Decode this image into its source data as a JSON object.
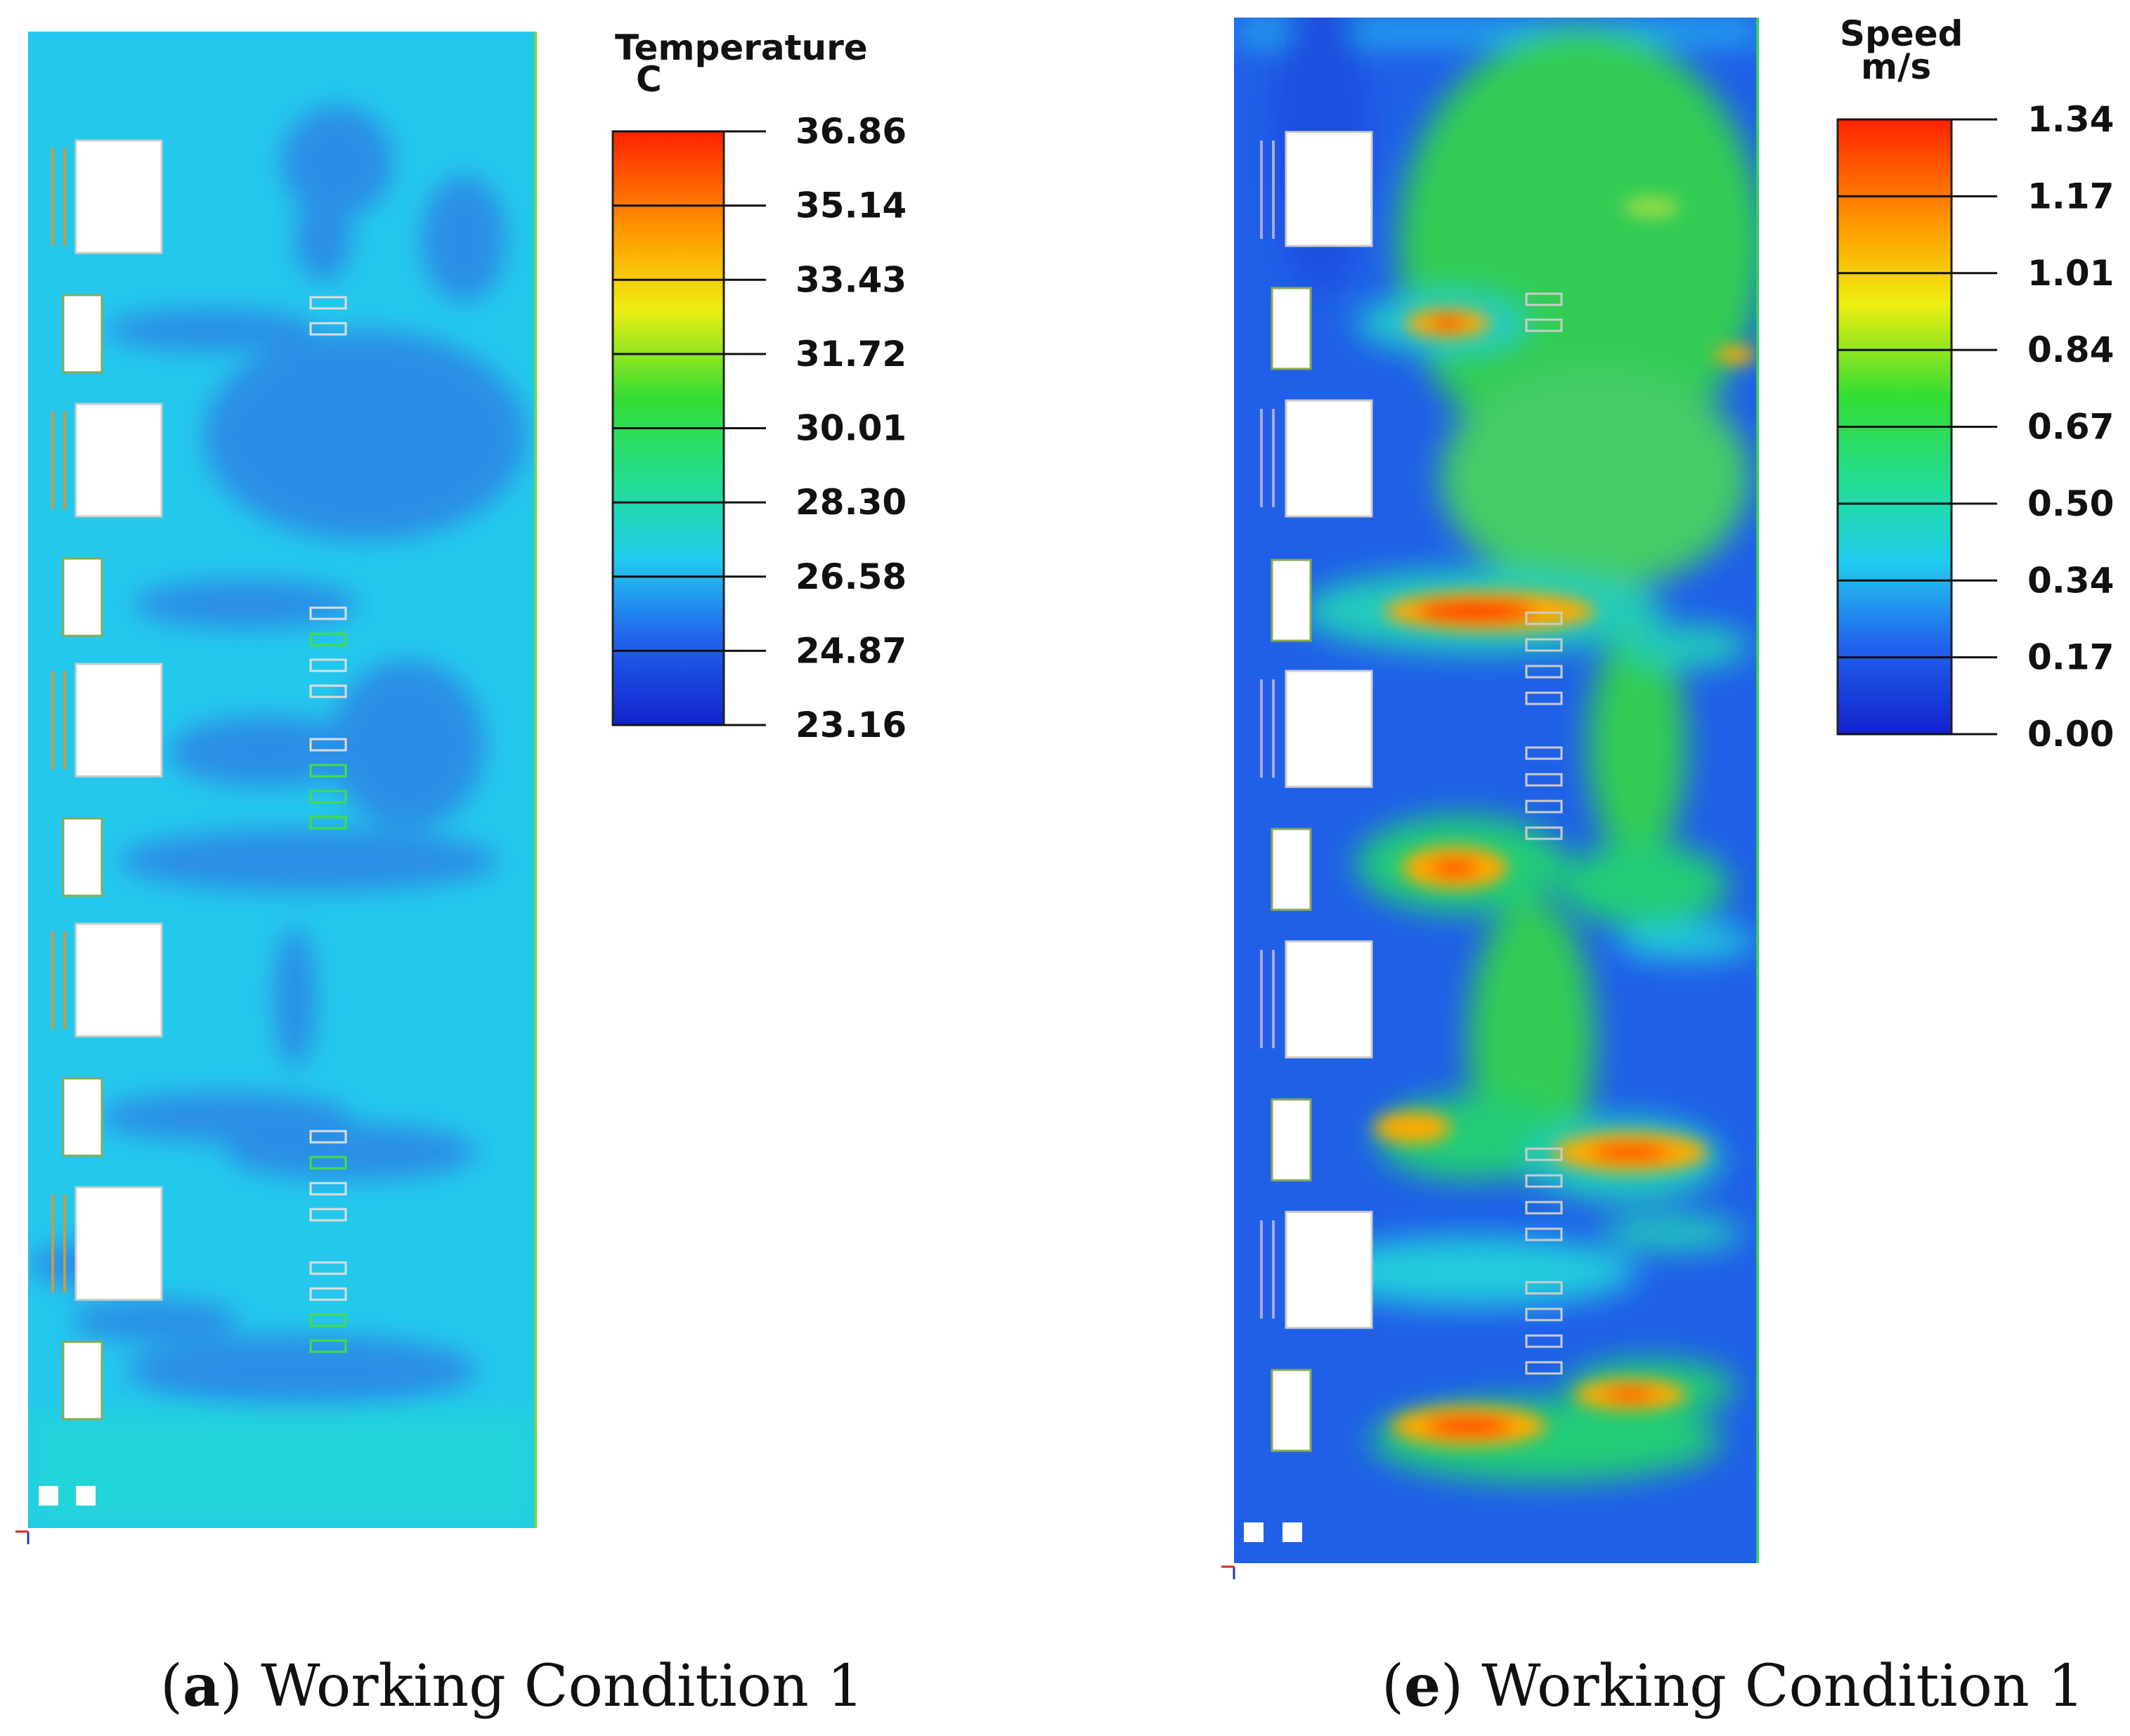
{
  "panels": [
    {
      "id": "a",
      "legend": {
        "title": "Temperature",
        "unit": "C",
        "ticks": [
          "36.86",
          "35.14",
          "33.43",
          "31.72",
          "30.01",
          "28.30",
          "26.58",
          "24.87",
          "23.16"
        ]
      },
      "caption": {
        "label": "a",
        "text": "Working Condition 1"
      }
    },
    {
      "id": "e",
      "legend": {
        "title": "Speed",
        "unit": "m/s",
        "ticks": [
          "1.34",
          "1.17",
          "1.01",
          "0.84",
          "0.67",
          "0.50",
          "0.34",
          "0.17",
          "0.00"
        ]
      },
      "caption": {
        "label": "e",
        "text": "Working Condition 1"
      }
    }
  ],
  "colors": {
    "scale": [
      "#ff2200",
      "#ff9900",
      "#eeee11",
      "#33dd33",
      "#22cc44",
      "#22ddaa",
      "#22ccee",
      "#2266ee",
      "#1122dd"
    ],
    "temperature_background": "#24c8ec",
    "temperature_cool_zone": "#2a8ee6",
    "speed_background": "#2060e8",
    "obstacle": "#ffffff"
  }
}
